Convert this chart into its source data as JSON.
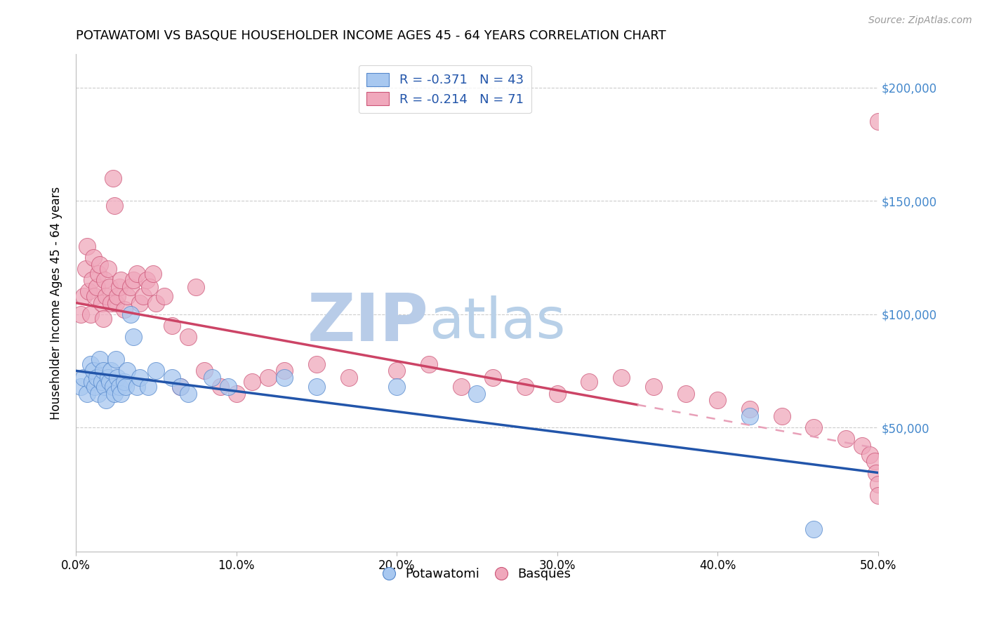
{
  "title": "POTAWATOMI VS BASQUE HOUSEHOLDER INCOME AGES 45 - 64 YEARS CORRELATION CHART",
  "source": "Source: ZipAtlas.com",
  "xlabel_ticks": [
    "0.0%",
    "10.0%",
    "20.0%",
    "30.0%",
    "40.0%",
    "50.0%"
  ],
  "xlabel_vals": [
    0.0,
    0.1,
    0.2,
    0.3,
    0.4,
    0.5
  ],
  "ylabel_ticks": [
    "$50,000",
    "$100,000",
    "$150,000",
    "$200,000"
  ],
  "ylabel_vals": [
    50000,
    100000,
    150000,
    200000
  ],
  "xlim": [
    0.0,
    0.5
  ],
  "ylim": [
    -5000,
    215000
  ],
  "ylabel": "Householder Income Ages 45 - 64 years",
  "watermark_zip": "ZIP",
  "watermark_atlas": "atlas",
  "legend_blue_r": -0.371,
  "legend_blue_n": 43,
  "legend_pink_r": -0.214,
  "legend_pink_n": 71,
  "blue_line_x0": 0.0,
  "blue_line_y0": 75000,
  "blue_line_x1": 0.5,
  "blue_line_y1": 30000,
  "pink_line_x0": 0.0,
  "pink_line_y0": 105000,
  "pink_line_x1": 0.35,
  "pink_line_y1": 60000,
  "potawatomi_x": [
    0.003,
    0.005,
    0.007,
    0.009,
    0.01,
    0.011,
    0.012,
    0.013,
    0.014,
    0.015,
    0.016,
    0.017,
    0.018,
    0.019,
    0.02,
    0.021,
    0.022,
    0.023,
    0.024,
    0.025,
    0.026,
    0.027,
    0.028,
    0.03,
    0.031,
    0.032,
    0.034,
    0.036,
    0.038,
    0.04,
    0.045,
    0.05,
    0.06,
    0.065,
    0.07,
    0.085,
    0.095,
    0.13,
    0.15,
    0.2,
    0.25,
    0.42,
    0.46
  ],
  "potawatomi_y": [
    68000,
    72000,
    65000,
    78000,
    70000,
    75000,
    68000,
    72000,
    65000,
    80000,
    70000,
    75000,
    68000,
    62000,
    72000,
    70000,
    75000,
    68000,
    65000,
    80000,
    72000,
    68000,
    65000,
    70000,
    68000,
    75000,
    100000,
    90000,
    68000,
    72000,
    68000,
    75000,
    72000,
    68000,
    65000,
    72000,
    68000,
    72000,
    68000,
    68000,
    65000,
    55000,
    5000
  ],
  "basque_x": [
    0.003,
    0.005,
    0.006,
    0.007,
    0.008,
    0.009,
    0.01,
    0.011,
    0.012,
    0.013,
    0.014,
    0.015,
    0.016,
    0.017,
    0.018,
    0.019,
    0.02,
    0.021,
    0.022,
    0.023,
    0.024,
    0.025,
    0.026,
    0.027,
    0.028,
    0.03,
    0.032,
    0.034,
    0.036,
    0.038,
    0.04,
    0.042,
    0.044,
    0.046,
    0.048,
    0.05,
    0.055,
    0.06,
    0.065,
    0.07,
    0.075,
    0.08,
    0.09,
    0.1,
    0.11,
    0.12,
    0.13,
    0.15,
    0.17,
    0.2,
    0.22,
    0.24,
    0.26,
    0.28,
    0.3,
    0.32,
    0.34,
    0.36,
    0.38,
    0.4,
    0.42,
    0.44,
    0.46,
    0.48,
    0.49,
    0.495,
    0.498,
    0.499,
    0.5,
    0.5,
    0.5
  ],
  "basque_y": [
    100000,
    108000,
    120000,
    130000,
    110000,
    100000,
    115000,
    125000,
    108000,
    112000,
    118000,
    122000,
    105000,
    98000,
    115000,
    108000,
    120000,
    112000,
    105000,
    160000,
    148000,
    105000,
    108000,
    112000,
    115000,
    102000,
    108000,
    112000,
    115000,
    118000,
    105000,
    108000,
    115000,
    112000,
    118000,
    105000,
    108000,
    95000,
    68000,
    90000,
    112000,
    75000,
    68000,
    65000,
    70000,
    72000,
    75000,
    78000,
    72000,
    75000,
    78000,
    68000,
    72000,
    68000,
    65000,
    70000,
    72000,
    68000,
    65000,
    62000,
    58000,
    55000,
    50000,
    45000,
    42000,
    38000,
    35000,
    30000,
    25000,
    20000,
    185000
  ],
  "blue_color": "#A8C8F0",
  "pink_color": "#F0A8BC",
  "blue_edge_color": "#5588CC",
  "pink_edge_color": "#CC5577",
  "blue_line_color": "#2255AA",
  "pink_line_color": "#CC4466",
  "pink_dash_color": "#E8A0B8",
  "grid_color": "#CCCCCC",
  "watermark_zip_color": "#B8CCE8",
  "watermark_atlas_color": "#B8D0E8",
  "right_axis_color": "#4488CC"
}
